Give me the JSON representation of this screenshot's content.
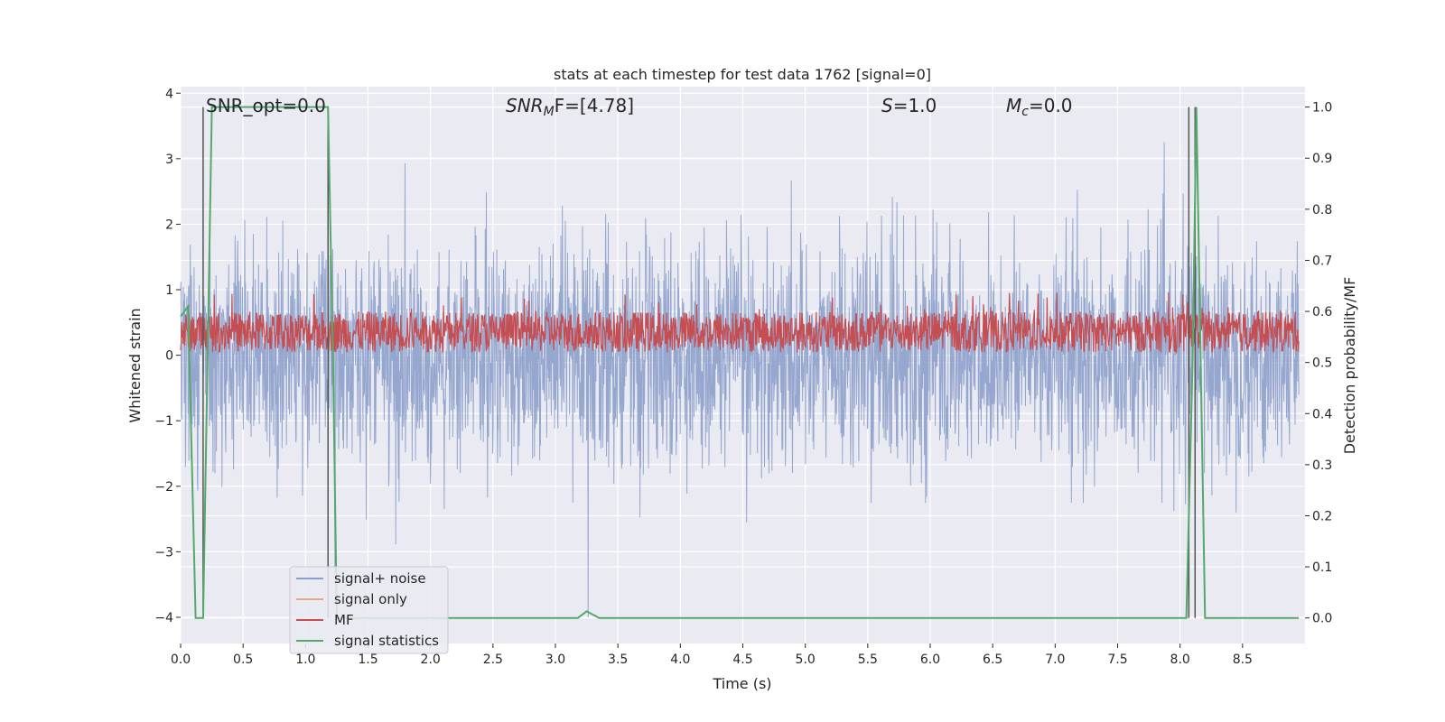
{
  "chart_data": {
    "type": "line",
    "title": "stats at each timestep for test data 1762 [signal=0]",
    "xlabel": "Time (s)",
    "ylabel_left": "Whitened strain",
    "ylabel_right": "Detection probability/MF",
    "xlim": [
      0.0,
      9.0
    ],
    "ylim_left": [
      -4.4,
      4.1
    ],
    "ylim_right": [
      -0.05,
      1.04
    ],
    "x_ticks": [
      0.0,
      0.5,
      1.0,
      1.5,
      2.0,
      2.5,
      3.0,
      3.5,
      4.0,
      4.5,
      5.0,
      5.5,
      6.0,
      6.5,
      7.0,
      7.5,
      8.0,
      8.5
    ],
    "x_tick_labels": [
      "0.0",
      "0.5",
      "1.0",
      "1.5",
      "2.0",
      "2.5",
      "3.0",
      "3.5",
      "4.0",
      "4.5",
      "5.0",
      "5.5",
      "6.0",
      "6.5",
      "7.0",
      "7.5",
      "8.0",
      "8.5"
    ],
    "y_left_ticks": [
      4,
      3,
      2,
      1,
      0,
      -1,
      -2,
      -3,
      -4
    ],
    "y_left_tick_labels": [
      "4",
      "3",
      "2",
      "1",
      "0",
      "−1",
      "−2",
      "−3",
      "−4"
    ],
    "y_right_ticks": [
      1.0,
      0.9,
      0.8,
      0.7,
      0.6,
      0.5,
      0.4,
      0.3,
      0.2,
      0.1,
      0.0
    ],
    "y_right_tick_labels": [
      "1.0",
      "0.9",
      "0.8",
      "0.7",
      "0.6",
      "0.5",
      "0.4",
      "0.3",
      "0.2",
      "0.1",
      "0.0"
    ],
    "grid": true,
    "legend_position": "lower-left",
    "annotations": {
      "snr_opt": "SNR_opt=0.0",
      "snr_mf_main": "SNR",
      "snr_mf_sub": "M",
      "snr_mf_rest": "F=[4.78]",
      "s_main": "S",
      "s_rest": "=1.0",
      "mc_main": "M",
      "mc_sub": "c",
      "mc_rest": "=0.0"
    },
    "series": [
      {
        "name": "signal+ noise",
        "axis": "left",
        "color": "#8da0cb",
        "description_values": "noise envelope approx ±1.7 with peaks to ±3.7",
        "envelope": [
          -1.7,
          1.7
        ],
        "peak_range": [
          -4.0,
          3.7
        ]
      },
      {
        "name": "signal only",
        "axis": "left",
        "color": "#e8a98a",
        "values": []
      },
      {
        "name": "MF",
        "axis": "right",
        "color": "#c44e52",
        "band": [
          0.52,
          0.6
        ],
        "peak_max": 0.64
      },
      {
        "name": "signal statistics",
        "axis": "right",
        "color": "#55a868",
        "x": [
          0.0,
          0.06,
          0.12,
          0.18,
          0.25,
          1.18,
          1.22,
          1.25,
          3.18,
          3.25,
          3.35,
          8.05,
          8.1,
          8.13,
          8.2,
          8.95
        ],
        "values": [
          0.59,
          0.61,
          0.0,
          0.0,
          1.0,
          1.0,
          0.5,
          0.0,
          0.0,
          0.013,
          0.0,
          0.0,
          0.5,
          1.0,
          0.0,
          0.0
        ]
      }
    ],
    "vertical_markers": [
      0.18,
      1.18,
      8.07,
      8.12
    ]
  }
}
